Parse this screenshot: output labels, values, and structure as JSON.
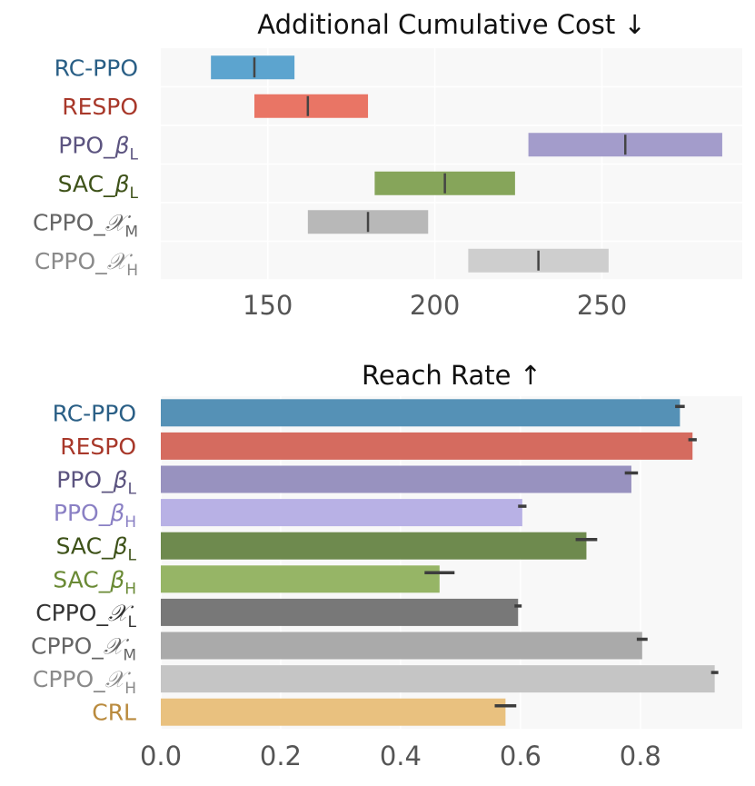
{
  "chart_data": [
    {
      "type": "range",
      "title": "Additional Cumulative Cost ↓",
      "xlim": [
        118,
        292
      ],
      "xticks": [
        150,
        200,
        250
      ],
      "grid": true,
      "rows": [
        {
          "base": "RC-PPO",
          "sub": "",
          "low": 133,
          "high": 158,
          "median": 146,
          "color": "#5ca4cf",
          "label_color": "#2a5f86"
        },
        {
          "base": "RESPO",
          "sub": "",
          "low": 146,
          "high": 180,
          "median": 162,
          "color": "#e97565",
          "label_color": "#a8382a"
        },
        {
          "base": "PPO_",
          "sym": "β",
          "sub": "L",
          "low": 228,
          "high": 286,
          "median": 257,
          "color": "#a39ccb",
          "label_color": "#5c5480"
        },
        {
          "base": "SAC_",
          "sym": "β",
          "sub": "L",
          "low": 182,
          "high": 224,
          "median": 203,
          "color": "#86a55a",
          "label_color": "#3e5219"
        },
        {
          "base": "CPPO_",
          "sym": "𝒳",
          "sub": "M",
          "low": 162,
          "high": 198,
          "median": 180,
          "color": "#b8b8b8",
          "label_color": "#666666"
        },
        {
          "base": "CPPO_",
          "sym": "𝒳",
          "sub": "H",
          "low": 210,
          "high": 252,
          "median": 231,
          "color": "#cecece",
          "label_color": "#8a8a8a"
        }
      ]
    },
    {
      "type": "bar",
      "orientation": "horizontal",
      "title": "Reach Rate ↑",
      "xlim": [
        0,
        0.97
      ],
      "xticks": [
        "0.0",
        "0.2",
        "0.4",
        "0.6",
        "0.8"
      ],
      "grid": true,
      "rows": [
        {
          "base": "RC-PPO",
          "sub": "",
          "value": 0.866,
          "err": 0.008,
          "color": "#5591b6",
          "label_color": "#2a5f86"
        },
        {
          "base": "RESPO",
          "sub": "",
          "value": 0.887,
          "err": 0.007,
          "color": "#d56b5f",
          "label_color": "#a8382a"
        },
        {
          "base": "PPO_",
          "sym": "β",
          "sub": "L",
          "value": 0.785,
          "err": 0.011,
          "color": "#9892bf",
          "label_color": "#5c5480"
        },
        {
          "base": "PPO_",
          "sym": "β",
          "sub": "H",
          "value": 0.603,
          "err": 0.007,
          "color": "#b8b1e5",
          "label_color": "#8a80c4"
        },
        {
          "base": "SAC_",
          "sym": "β",
          "sub": "L",
          "value": 0.71,
          "err": 0.018,
          "color": "#6e8a4e",
          "label_color": "#3e5219"
        },
        {
          "base": "SAC_",
          "sym": "β",
          "sub": "H",
          "value": 0.465,
          "err": 0.025,
          "color": "#96b566",
          "label_color": "#6a8a35"
        },
        {
          "base": "CPPO_",
          "sym": "𝒳",
          "sub": "L",
          "value": 0.596,
          "err": 0.006,
          "color": "#787878",
          "label_color": "#333333"
        },
        {
          "base": "CPPO_",
          "sym": "𝒳",
          "sub": "M",
          "value": 0.803,
          "err": 0.009,
          "color": "#aaaaaa",
          "label_color": "#666666"
        },
        {
          "base": "CPPO_",
          "sym": "𝒳",
          "sub": "H",
          "value": 0.924,
          "err": 0.006,
          "color": "#c5c5c5",
          "label_color": "#8a8a8a"
        },
        {
          "base": "CRL",
          "sub": "",
          "value": 0.575,
          "err": 0.018,
          "color": "#e9c17f",
          "label_color": "#b98a3d"
        }
      ]
    }
  ]
}
